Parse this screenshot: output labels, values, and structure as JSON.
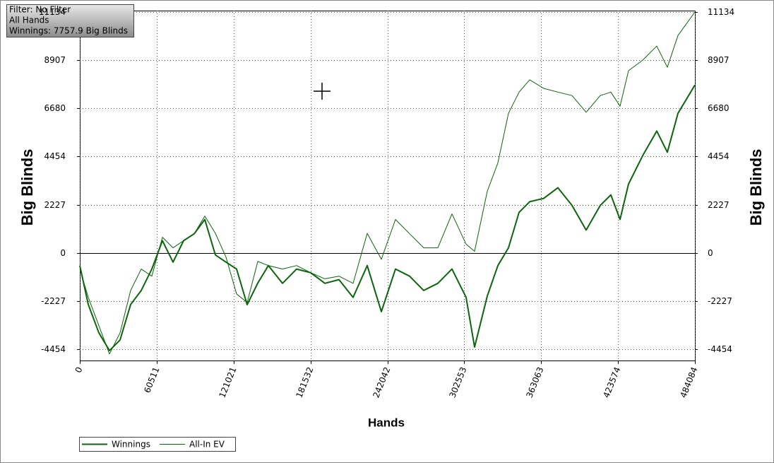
{
  "info_box": {
    "lines": [
      "Filter: No Filter",
      "All Hands",
      "Winnings: 7757.9 Big Blinds"
    ]
  },
  "chart_data": {
    "type": "line",
    "y_label": "Big Blinds",
    "y2_label": "Big Blinds",
    "x_label": "Hands",
    "xlim": [
      0,
      484084
    ],
    "xticks": [
      0,
      60511,
      121021,
      181532,
      242042,
      302553,
      363063,
      423574,
      484084
    ],
    "ylim": [
      -4980,
      11200
    ],
    "yticks": [
      -4454,
      -2227,
      0,
      2227,
      4454,
      6680,
      8907,
      11134
    ],
    "y2lim": [
      -4980,
      11200
    ],
    "y2ticks": [
      -4454,
      -2227,
      0,
      2227,
      4454,
      6680,
      8907,
      11134
    ],
    "grid": true,
    "x": [
      0,
      6669,
      15006,
      23343,
      31679,
      40016,
      48353,
      56690,
      65026,
      73363,
      81700,
      90036,
      98373,
      106710,
      115046,
      123383,
      131720,
      140057,
      148393,
      159509,
      170624,
      181740,
      192856,
      203971,
      215087,
      226202,
      237318,
      248434,
      259549,
      270665,
      281781,
      292896,
      304012,
      310681,
      320685,
      329022,
      337358,
      345695,
      354032,
      365147,
      376263,
      387379,
      398494,
      409610,
      417947,
      425172,
      431841,
      442957,
      454072,
      462409,
      470746,
      484084
    ],
    "series": [
      {
        "name": "Winnings",
        "color": "#0b650b",
        "width": 2,
        "values": [
          -590,
          -2390,
          -3700,
          -4520,
          -4030,
          -2390,
          -1740,
          -750,
          560,
          -430,
          560,
          880,
          1540,
          -100,
          -430,
          -750,
          -2400,
          -1400,
          -590,
          -1410,
          -750,
          -920,
          -1410,
          -1240,
          -2060,
          -590,
          -2720,
          -750,
          -1080,
          -1740,
          -1410,
          -750,
          -2060,
          -4360,
          -2000,
          -590,
          230,
          1870,
          2360,
          2520,
          3010,
          2190,
          1050,
          2190,
          2680,
          1540,
          3180,
          4490,
          5630,
          4650,
          6450,
          7758
        ]
      },
      {
        "name": "All-In EV",
        "color": "#0b650b",
        "width": 1,
        "values": [
          -750,
          -2060,
          -3370,
          -4680,
          -3700,
          -1740,
          -750,
          -1080,
          720,
          230,
          560,
          880,
          1700,
          900,
          -200,
          -1900,
          -2300,
          -400,
          -590,
          -750,
          -590,
          -920,
          -1200,
          -1080,
          -1410,
          900,
          -300,
          1540,
          880,
          230,
          230,
          1800,
          400,
          70,
          2850,
          4160,
          6450,
          7430,
          8000,
          7600,
          7430,
          7270,
          6500,
          7270,
          7430,
          6780,
          8420,
          8910,
          9560,
          8580,
          10050,
          11134
        ]
      }
    ]
  }
}
